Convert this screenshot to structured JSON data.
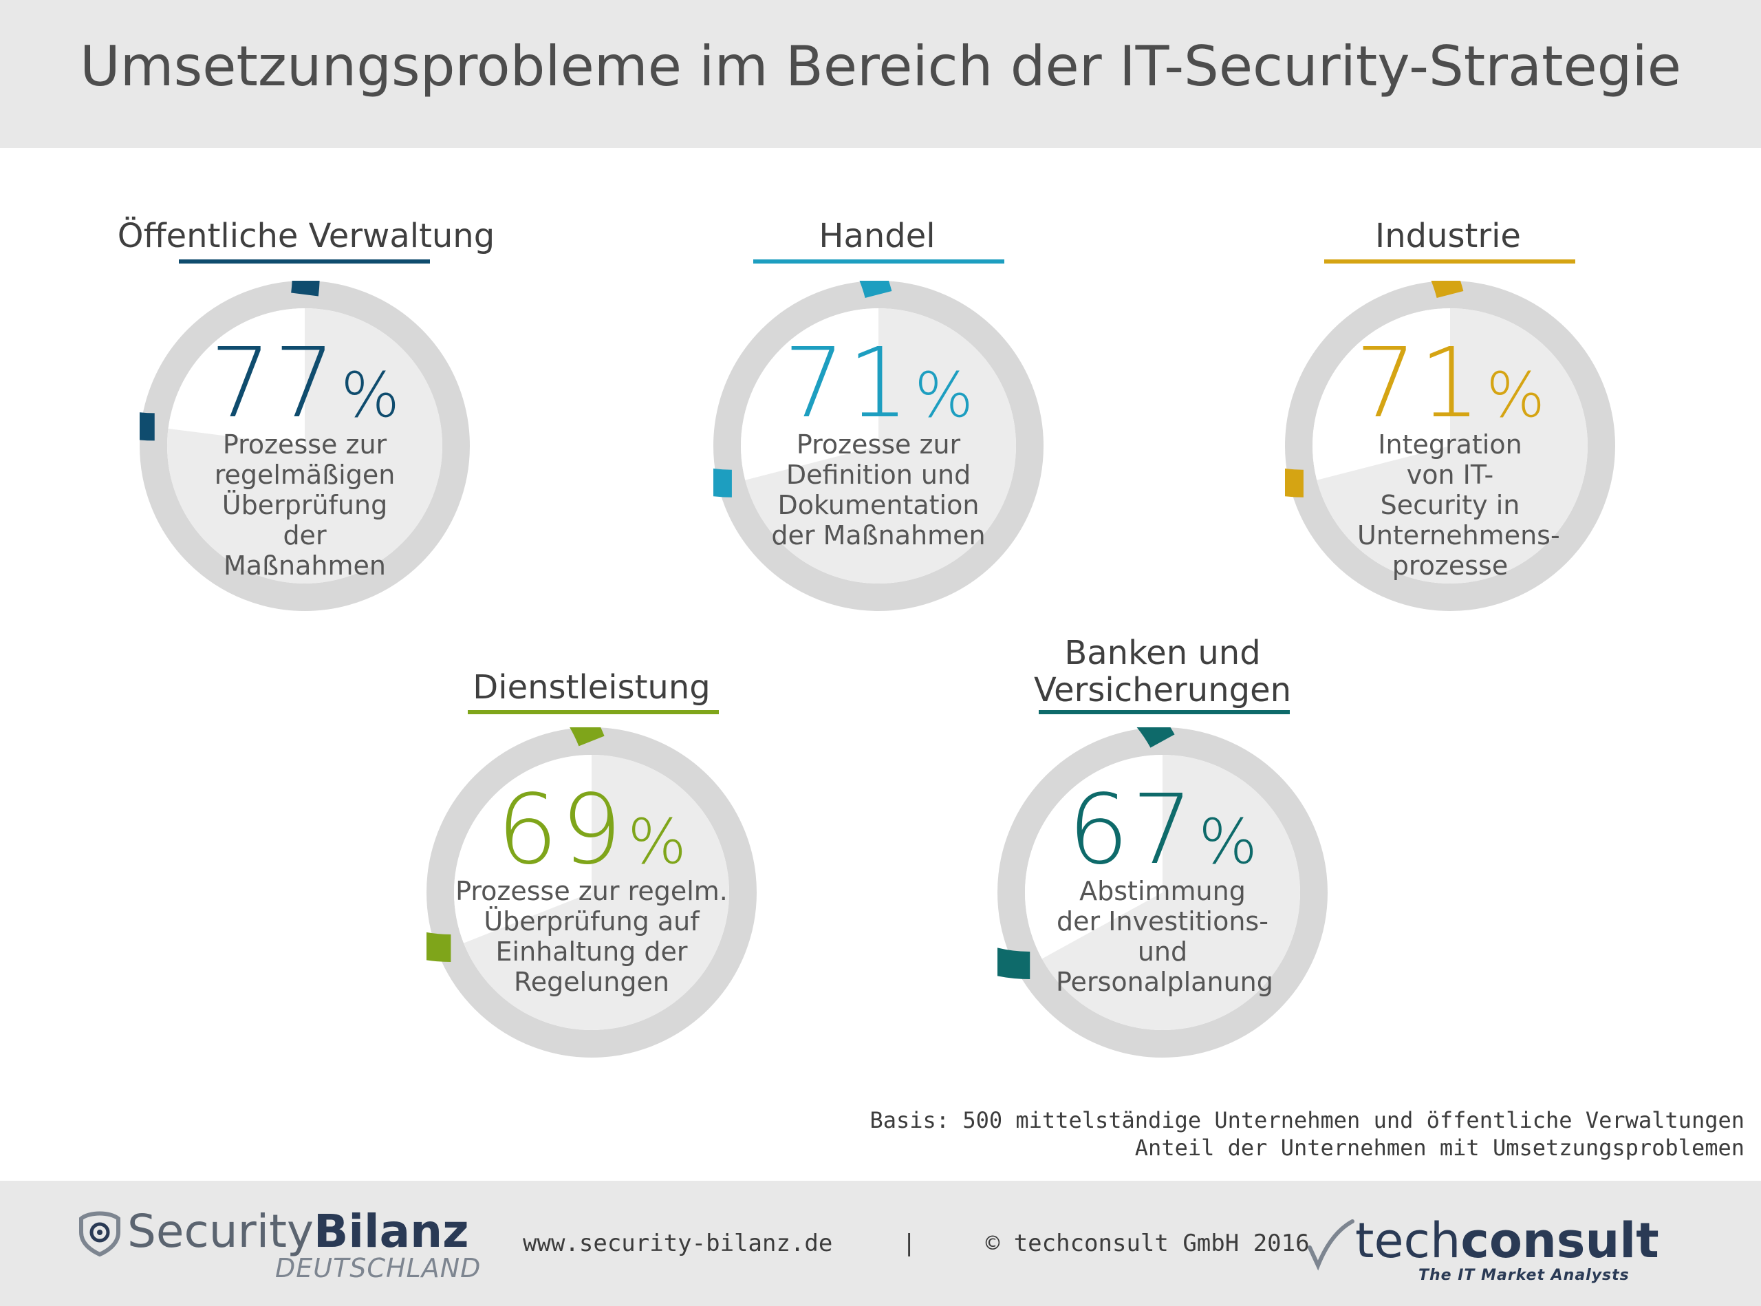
{
  "header": {
    "title": "Umsetzungsprobleme im Bereich der IT-Security-Strategie"
  },
  "chart_data": {
    "type": "pie",
    "title": "Umsetzungsprobleme im Bereich der IT-Security-Strategie",
    "unit": "%",
    "items": [
      {
        "segment": "Öffentliche Verwaltung",
        "value": 77,
        "description": "Prozesse zur regelmäßigen Überprüfung der Maßnahmen",
        "color": "#0f4c6e"
      },
      {
        "segment": "Handel",
        "value": 71,
        "description": "Prozesse zur Definition und Dokumentation der Maßnahmen",
        "color": "#1d9ec0"
      },
      {
        "segment": "Industrie",
        "value": 71,
        "description": "Integration von IT-Security in Unternehmens-prozesse",
        "color": "#d5a413"
      },
      {
        "segment": "Dienstleistung",
        "value": 69,
        "description": "Prozesse zur regelm. Überprüfung auf Einhaltung der Regelungen",
        "color": "#7fa51a"
      },
      {
        "segment": "Banken und Versicherungen",
        "value": 67,
        "description": "Abstimmung der Investitions- und Personalplanung",
        "color": "#0e6a6a"
      }
    ],
    "remainder_color": "#d8d8d8",
    "inner_color": "#ececec"
  },
  "basis": {
    "line1": "Basis: 500 mittelständige Unternehmen und öffentliche Verwaltungen",
    "line2": "Anteil der Unternehmen mit Umsetzungsproblemen"
  },
  "footer": {
    "url": "www.security-bilanz.de",
    "separator": "|",
    "copyright": "© techconsult GmbH 2016",
    "logo_left_light": "Security",
    "logo_left_bold": "Bilanz",
    "logo_left_sub": "DEUTSCHLAND",
    "logo_right_light": "tech",
    "logo_right_bold": "consult",
    "logo_right_sub": "The IT Market Analysts"
  }
}
